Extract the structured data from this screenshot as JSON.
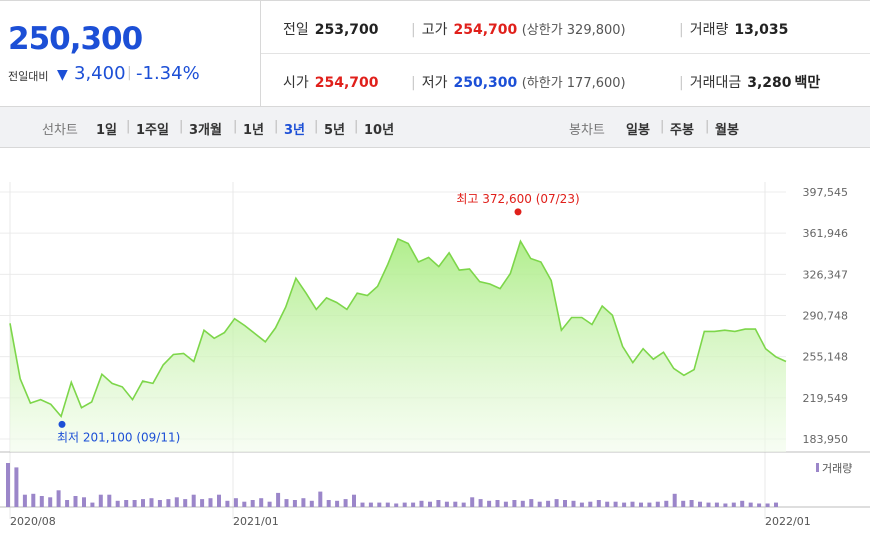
{
  "header": {
    "price": "250,300",
    "compare_label": "전일대비",
    "compare_arrow": "▼",
    "compare_value": "3,400",
    "compare_pct": "-1.34%",
    "prev_close_label": "전일",
    "prev_close": "253,700",
    "high_label": "고가",
    "high": "254,700",
    "upper_limit_text": "(상한가 329,800)",
    "volume_label": "거래량",
    "volume": "13,035",
    "open_label": "시가",
    "open": "254,700",
    "low_label": "저가",
    "low": "250,300",
    "lower_limit_text": "(하한가 177,600)",
    "amount_label": "거래대금",
    "amount": "3,280",
    "amount_unit": "백만"
  },
  "tabs": {
    "line_label": "선차트",
    "line_tabs": [
      "1일",
      "1주일",
      "3개월",
      "1년",
      "3년",
      "5년",
      "10년"
    ],
    "active_line_tab": "3년",
    "candle_label": "봉차트",
    "candle_tabs": [
      "일봉",
      "주봉",
      "월봉"
    ]
  },
  "colors": {
    "accent_blue": "#1c4fd6",
    "up_red": "#e0201b",
    "line_green": "#7dd64a",
    "volume_purple": "#9b86c9"
  },
  "chart_data": {
    "type": "area",
    "ylim": [
      183950,
      397545
    ],
    "y_ticks": [
      "397,545",
      "361,946",
      "326,347",
      "290,748",
      "255,148",
      "219,549",
      "183,950"
    ],
    "x_ticks": [
      "2020/08",
      "2021/01",
      "2022/01"
    ],
    "price": [
      284000,
      236000,
      215000,
      218000,
      214000,
      203500,
      233000,
      211000,
      216000,
      240000,
      232000,
      229000,
      218000,
      234000,
      232000,
      248000,
      257000,
      258000,
      251000,
      278000,
      271000,
      276000,
      288000,
      282000,
      275000,
      268000,
      280000,
      298000,
      323000,
      310000,
      296000,
      306000,
      302000,
      296000,
      310000,
      308000,
      316000,
      335000,
      357000,
      353000,
      337000,
      341000,
      333000,
      345000,
      330000,
      331000,
      320000,
      318000,
      314000,
      327000,
      355000,
      340000,
      337000,
      321000,
      278000,
      289000,
      289000,
      283000,
      299000,
      291000,
      264000,
      250000,
      262000,
      253000,
      259000,
      245000,
      239000,
      244000,
      277000,
      277000,
      278000,
      277000,
      279000,
      279000,
      262000,
      255000,
      251000
    ],
    "annotations": {
      "high_text": "최고 372,600 (07/23)",
      "low_text": "최저 201,100 (09/11)"
    },
    "volume_legend": "거래량",
    "volume": [
      100,
      90,
      28,
      30,
      25,
      22,
      38,
      16,
      25,
      22,
      10,
      28,
      28,
      14,
      16,
      16,
      18,
      20,
      16,
      18,
      22,
      18,
      28,
      18,
      20,
      28,
      14,
      20,
      12,
      16,
      20,
      12,
      32,
      18,
      16,
      20,
      14,
      35,
      16,
      14,
      18,
      28,
      10,
      10,
      10,
      10,
      8,
      10,
      10,
      14,
      12,
      16,
      12,
      12,
      10,
      22,
      18,
      14,
      16,
      12,
      16,
      14,
      18,
      12,
      14,
      18,
      16,
      14,
      10,
      12,
      16,
      12,
      12,
      10,
      12,
      10,
      10,
      12,
      14,
      30,
      14,
      16,
      12,
      10,
      10,
      8,
      10,
      14,
      10,
      8,
      8,
      10
    ]
  }
}
